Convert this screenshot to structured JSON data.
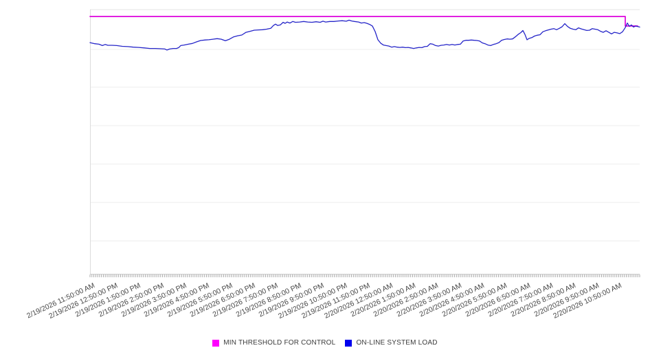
{
  "chart_data": {
    "type": "line",
    "title": "",
    "xlabel": "",
    "ylabel": "",
    "y_axis_labels_visible": false,
    "y_unit": "percent-of-plot-height",
    "ylim": [
      0,
      100
    ],
    "x_hours_span": 24,
    "sample_interval_minutes": 5,
    "minor_tick_intervals": 288,
    "grid": "horizontal",
    "gridlines_pct": [
      84.9,
      70.6,
      56.1,
      41.6,
      27.0,
      12.5
    ],
    "legend_position": "bottom-center",
    "x_categories": [
      "2/19/2026 11:50:00 AM",
      "2/19/2026 12:50:00 PM",
      "2/19/2026 1:50:00 PM",
      "2/19/2026 2:50:00 PM",
      "2/19/2026 3:50:00 PM",
      "2/19/2026 4:50:00 PM",
      "2/19/2026 5:50:00 PM",
      "2/19/2026 6:50:00 PM",
      "2/19/2026 7:50:00 PM",
      "2/19/2026 8:50:00 PM",
      "2/19/2026 9:50:00 PM",
      "2/19/2026 10:50:00 PM",
      "2/19/2026 11:50:00 PM",
      "2/20/2026 12:50:00 AM",
      "2/20/2026 1:50:00 AM",
      "2/20/2026 2:50:00 AM",
      "2/20/2026 3:50:00 AM",
      "2/20/2026 4:50:00 AM",
      "2/20/2026 5:50:00 AM",
      "2/20/2026 6:50:00 AM",
      "2/20/2026 7:50:00 AM",
      "2/20/2026 8:50:00 AM",
      "2/20/2026 9:50:00 AM",
      "2/20/2026 10:50:00 AM"
    ],
    "series": [
      {
        "name": "MIN THRESHOLD FOR CONTROL",
        "color": "#dd00dd",
        "points": [
          [
            0,
            97.4
          ],
          [
            23.37,
            97.4
          ],
          [
            23.37,
            93.8
          ],
          [
            23.91,
            93.8
          ]
        ]
      },
      {
        "name": "ON-LINE SYSTEM LOAD",
        "color": "#2424c8",
        "points": [
          [
            0,
            87.5
          ],
          [
            0.21,
            87.1
          ],
          [
            0.39,
            86.9
          ],
          [
            0.54,
            86.4
          ],
          [
            0.66,
            86.8
          ],
          [
            0.78,
            86.5
          ],
          [
            0.96,
            86.5
          ],
          [
            1.17,
            86.4
          ],
          [
            1.41,
            86.1
          ],
          [
            1.65,
            86
          ],
          [
            1.89,
            85.8
          ],
          [
            2.13,
            85.7
          ],
          [
            2.37,
            85.5
          ],
          [
            2.61,
            85.3
          ],
          [
            2.85,
            85.3
          ],
          [
            3.09,
            85.2
          ],
          [
            3.27,
            85.1
          ],
          [
            3.36,
            84.7
          ],
          [
            3.48,
            85.1
          ],
          [
            3.63,
            85.3
          ],
          [
            3.78,
            85.3
          ],
          [
            3.87,
            85.6
          ],
          [
            3.96,
            86.4
          ],
          [
            4.11,
            86.6
          ],
          [
            4.29,
            86.9
          ],
          [
            4.47,
            87.2
          ],
          [
            4.65,
            87.8
          ],
          [
            4.83,
            88.3
          ],
          [
            5.01,
            88.5
          ],
          [
            5.19,
            88.6
          ],
          [
            5.37,
            88.8
          ],
          [
            5.55,
            89
          ],
          [
            5.73,
            88.8
          ],
          [
            5.91,
            88.2
          ],
          [
            6.09,
            88.8
          ],
          [
            6.27,
            89.7
          ],
          [
            6.45,
            90.1
          ],
          [
            6.63,
            90.4
          ],
          [
            6.81,
            91.4
          ],
          [
            6.99,
            91.8
          ],
          [
            7.17,
            92.2
          ],
          [
            7.35,
            92.3
          ],
          [
            7.53,
            92.4
          ],
          [
            7.71,
            92.6
          ],
          [
            7.89,
            92.9
          ],
          [
            8.01,
            94
          ],
          [
            8.1,
            94.5
          ],
          [
            8.19,
            94
          ],
          [
            8.31,
            94.2
          ],
          [
            8.43,
            95.2
          ],
          [
            8.52,
            94.8
          ],
          [
            8.61,
            95.3
          ],
          [
            8.73,
            94.9
          ],
          [
            8.85,
            95.5
          ],
          [
            8.97,
            95.2
          ],
          [
            9.15,
            95.3
          ],
          [
            9.33,
            95.5
          ],
          [
            9.51,
            95.3
          ],
          [
            9.69,
            95.2
          ],
          [
            9.87,
            95.4
          ],
          [
            10.05,
            95.2
          ],
          [
            10.17,
            95.6
          ],
          [
            10.29,
            95.3
          ],
          [
            10.47,
            95.5
          ],
          [
            10.65,
            95.5
          ],
          [
            10.83,
            95.7
          ],
          [
            11.01,
            95.8
          ],
          [
            11.19,
            95.6
          ],
          [
            11.31,
            96
          ],
          [
            11.43,
            95.7
          ],
          [
            11.55,
            95.5
          ],
          [
            11.73,
            95.3
          ],
          [
            11.85,
            94.9
          ],
          [
            11.97,
            95.1
          ],
          [
            12.09,
            94.8
          ],
          [
            12.21,
            94.4
          ],
          [
            12.33,
            93.8
          ],
          [
            12.45,
            91.7
          ],
          [
            12.57,
            88.6
          ],
          [
            12.69,
            87.3
          ],
          [
            12.81,
            86.6
          ],
          [
            12.93,
            86.4
          ],
          [
            13.05,
            86.2
          ],
          [
            13.17,
            85.8
          ],
          [
            13.29,
            86
          ],
          [
            13.41,
            85.8
          ],
          [
            13.53,
            85.7
          ],
          [
            13.65,
            85.8
          ],
          [
            13.77,
            85.6
          ],
          [
            13.89,
            85.7
          ],
          [
            14.01,
            85.5
          ],
          [
            14.13,
            85.3
          ],
          [
            14.25,
            85.5
          ],
          [
            14.37,
            85.7
          ],
          [
            14.49,
            85.6
          ],
          [
            14.61,
            86
          ],
          [
            14.73,
            86.1
          ],
          [
            14.85,
            87.1
          ],
          [
            14.97,
            86.9
          ],
          [
            15.09,
            86.4
          ],
          [
            15.21,
            86.2
          ],
          [
            15.33,
            86.5
          ],
          [
            15.45,
            86.6
          ],
          [
            15.57,
            86.8
          ],
          [
            15.69,
            86.6
          ],
          [
            15.81,
            86.8
          ],
          [
            15.93,
            86.6
          ],
          [
            16.05,
            86.8
          ],
          [
            16.17,
            86.9
          ],
          [
            16.29,
            88.1
          ],
          [
            16.41,
            88.4
          ],
          [
            16.53,
            88.4
          ],
          [
            16.65,
            88.5
          ],
          [
            16.77,
            88.4
          ],
          [
            16.89,
            88.3
          ],
          [
            17.01,
            88.1
          ],
          [
            17.13,
            87.4
          ],
          [
            17.25,
            87.1
          ],
          [
            17.37,
            86.6
          ],
          [
            17.49,
            86.4
          ],
          [
            17.61,
            86.8
          ],
          [
            17.73,
            87.1
          ],
          [
            17.85,
            87.5
          ],
          [
            17.97,
            88.4
          ],
          [
            18.09,
            88.7
          ],
          [
            18.21,
            88.9
          ],
          [
            18.33,
            88.8
          ],
          [
            18.45,
            88.9
          ],
          [
            18.57,
            89.7
          ],
          [
            18.69,
            90.6
          ],
          [
            18.81,
            91.3
          ],
          [
            18.9,
            92.1
          ],
          [
            18.99,
            90.6
          ],
          [
            19.08,
            88.6
          ],
          [
            19.17,
            89.1
          ],
          [
            19.29,
            89.4
          ],
          [
            19.41,
            90
          ],
          [
            19.53,
            90.3
          ],
          [
            19.65,
            90.5
          ],
          [
            19.77,
            91.6
          ],
          [
            19.89,
            92
          ],
          [
            20.01,
            92.3
          ],
          [
            20.13,
            92.6
          ],
          [
            20.25,
            92.8
          ],
          [
            20.37,
            92.4
          ],
          [
            20.49,
            92.9
          ],
          [
            20.61,
            93.5
          ],
          [
            20.73,
            94.7
          ],
          [
            20.85,
            93.6
          ],
          [
            20.97,
            92.9
          ],
          [
            21.09,
            92.6
          ],
          [
            21.21,
            92.4
          ],
          [
            21.33,
            93.1
          ],
          [
            21.45,
            92.7
          ],
          [
            21.57,
            92.4
          ],
          [
            21.69,
            92.1
          ],
          [
            21.81,
            92.2
          ],
          [
            21.93,
            92.8
          ],
          [
            22.05,
            92.6
          ],
          [
            22.17,
            92.4
          ],
          [
            22.29,
            91.8
          ],
          [
            22.41,
            91.4
          ],
          [
            22.53,
            92
          ],
          [
            22.65,
            91.4
          ],
          [
            22.77,
            90.8
          ],
          [
            22.89,
            91.4
          ],
          [
            23.01,
            91.2
          ],
          [
            23.13,
            90.9
          ],
          [
            23.25,
            91.6
          ],
          [
            23.37,
            93.2
          ],
          [
            23.46,
            94.9
          ],
          [
            23.55,
            93.7
          ],
          [
            23.64,
            94.2
          ],
          [
            23.73,
            93.4
          ],
          [
            23.82,
            93.8
          ],
          [
            23.91,
            93.6
          ],
          [
            24,
            93.4
          ]
        ]
      }
    ]
  },
  "legend": {
    "items": [
      {
        "label": "MIN THRESHOLD FOR CONTROL",
        "color": "#ff00ff"
      },
      {
        "label": "ON-LINE SYSTEM LOAD",
        "color": "#0000ee"
      }
    ]
  },
  "axis": {
    "tick_color": "#a9a9a9",
    "bottom_line_color": "#c9c9c9",
    "top_border_color": "#e4e4e4",
    "left_border_color": "#dcdcdc",
    "grid_color": "#ececec",
    "label_color": "#474747"
  }
}
